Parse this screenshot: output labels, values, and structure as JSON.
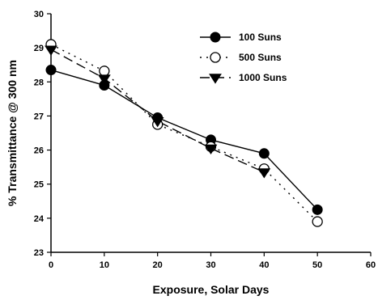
{
  "chart_data": {
    "type": "line",
    "title": "",
    "xlabel": "Exposure, Solar Days",
    "ylabel": "% Transmittance @ 300 nm",
    "xlim": [
      0,
      60
    ],
    "ylim": [
      23,
      30
    ],
    "xticks": [
      0,
      10,
      20,
      30,
      40,
      50,
      60
    ],
    "yticks": [
      23,
      24,
      25,
      26,
      27,
      28,
      29,
      30
    ],
    "grid": false,
    "legend_position": "top-right",
    "series": [
      {
        "name": "100 Suns",
        "marker": "filled-circle",
        "line_style": "solid",
        "x": [
          0,
          10,
          20,
          30,
          40,
          50
        ],
        "y": [
          28.35,
          27.9,
          26.95,
          26.3,
          25.9,
          24.25
        ]
      },
      {
        "name": "500 Suns",
        "marker": "open-circle",
        "line_style": "dotted",
        "x": [
          0,
          10,
          20,
          30,
          40,
          50
        ],
        "y": [
          29.1,
          28.32,
          26.75,
          26.1,
          25.45,
          23.9
        ]
      },
      {
        "name": "1000 Suns",
        "marker": "filled-triangle-down",
        "line_style": "dashed",
        "x": [
          0,
          10,
          20,
          30,
          40
        ],
        "y": [
          28.95,
          28.1,
          26.85,
          26.05,
          25.35
        ]
      }
    ]
  }
}
